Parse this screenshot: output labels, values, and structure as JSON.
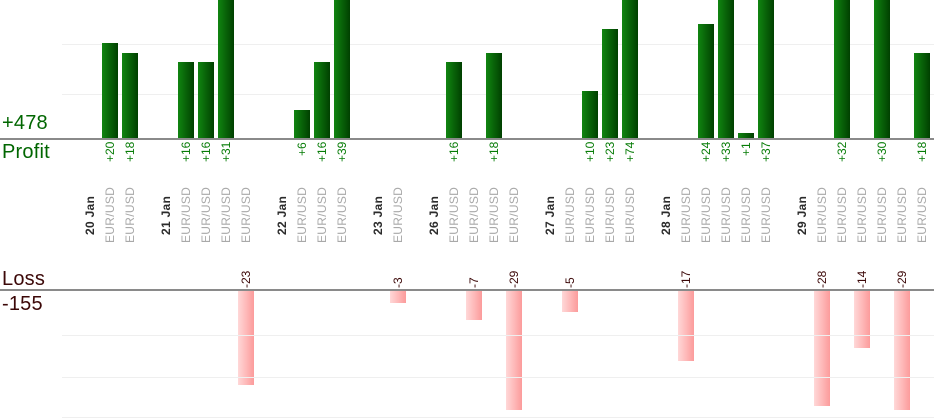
{
  "chart_data": {
    "type": "bar",
    "description": "Daily trade profit and loss per symbol, split into an upper profit pane and a lower loss pane",
    "legend_position": "none",
    "grid": true,
    "profit_axis": {
      "total_label": "+478",
      "name_label": "Profit"
    },
    "loss_axis": {
      "name_label": "Loss",
      "total_label": "-155"
    },
    "positive_prefix": "+",
    "groups": [
      {
        "date": "20 Jan",
        "trades": [
          {
            "symbol": "EUR/USD",
            "value": 20
          },
          {
            "symbol": "EUR/USD",
            "value": 18
          }
        ]
      },
      {
        "date": "21 Jan",
        "trades": [
          {
            "symbol": "EUR/USD",
            "value": 16
          },
          {
            "symbol": "EUR/USD",
            "value": 16
          },
          {
            "symbol": "EUR/USD",
            "value": 31
          },
          {
            "symbol": "EUR/USD",
            "value": -23
          }
        ]
      },
      {
        "date": "22 Jan",
        "trades": [
          {
            "symbol": "EUR/USD",
            "value": 6
          },
          {
            "symbol": "EUR/USD",
            "value": 16
          },
          {
            "symbol": "EUR/USD",
            "value": 39
          }
        ]
      },
      {
        "date": "23 Jan",
        "trades": [
          {
            "symbol": "EUR/USD",
            "value": -3
          }
        ]
      },
      {
        "date": "26 Jan",
        "trades": [
          {
            "symbol": "EUR/USD",
            "value": 16
          },
          {
            "symbol": "EUR/USD",
            "value": -7
          },
          {
            "symbol": "EUR/USD",
            "value": 18
          },
          {
            "symbol": "EUR/USD",
            "value": -29
          }
        ]
      },
      {
        "date": "27 Jan",
        "trades": [
          {
            "symbol": "EUR/USD",
            "value": -5
          },
          {
            "symbol": "EUR/USD",
            "value": 10
          },
          {
            "symbol": "EUR/USD",
            "value": 23
          },
          {
            "symbol": "EUR/USD",
            "value": 74
          }
        ]
      },
      {
        "date": "28 Jan",
        "trades": [
          {
            "symbol": "EUR/USD",
            "value": -17
          },
          {
            "symbol": "EUR/USD",
            "value": 24
          },
          {
            "symbol": "EUR/USD",
            "value": 33
          },
          {
            "symbol": "EUR/USD",
            "value": 1
          },
          {
            "symbol": "EUR/USD",
            "value": 37
          }
        ]
      },
      {
        "date": "29 Jan",
        "trades": [
          {
            "symbol": "EUR/USD",
            "value": -28
          },
          {
            "symbol": "EUR/USD",
            "value": 32
          },
          {
            "symbol": "EUR/USD",
            "value": -14
          },
          {
            "symbol": "EUR/USD",
            "value": 30
          },
          {
            "symbol": "EUR/USD",
            "value": -29
          },
          {
            "symbol": "EUR/USD",
            "value": 18
          }
        ]
      }
    ],
    "colors": {
      "profit_text": "#006600",
      "profit_value_text": "#077c07",
      "profit_bar_light": "#118511",
      "profit_bar_dark": "#004000",
      "loss_text": "#3c0808",
      "loss_bar_light": "#ffd8d8",
      "loss_bar_dark": "#fc9b9b",
      "date_text": "#2b2b2b",
      "symbol_text": "#a9a9a9",
      "baseline": "#8a8a8a",
      "gridline": "#efefef"
    }
  }
}
